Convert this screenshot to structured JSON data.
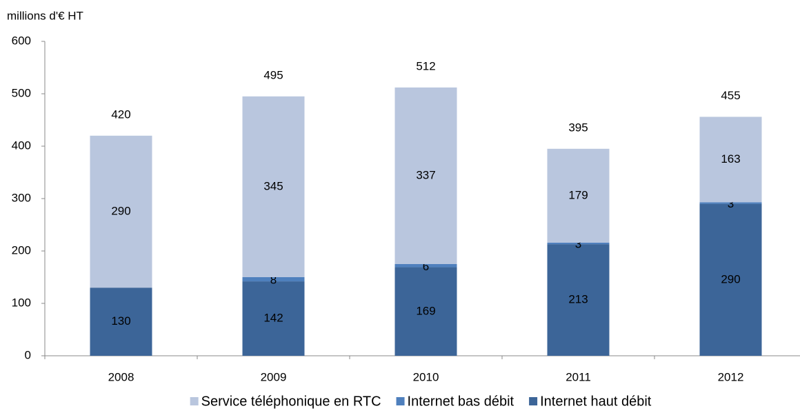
{
  "chart_data": {
    "type": "stacked_bar",
    "y_axis_label": "millions d'€ HT",
    "categories": [
      "2008",
      "2009",
      "2010",
      "2011",
      "2012"
    ],
    "series": [
      {
        "name": "Internet haut débit",
        "color": "#3c6598",
        "values": [
          130,
          142,
          169,
          213,
          290
        ]
      },
      {
        "name": "Internet bas débit",
        "color": "#4f80bd",
        "values": [
          null,
          8,
          6,
          3,
          3
        ]
      },
      {
        "name": "Service téléphonique en RTC",
        "color": "#b9c6de",
        "values": [
          290,
          345,
          337,
          179,
          163
        ]
      }
    ],
    "totals": [
      420,
      495,
      512,
      395,
      455
    ],
    "legend_order": [
      2,
      1,
      0
    ],
    "legend": "bottom",
    "ylim": [
      0,
      600
    ],
    "yticks": [
      0,
      100,
      200,
      300,
      400,
      500,
      600
    ],
    "grid": false
  }
}
